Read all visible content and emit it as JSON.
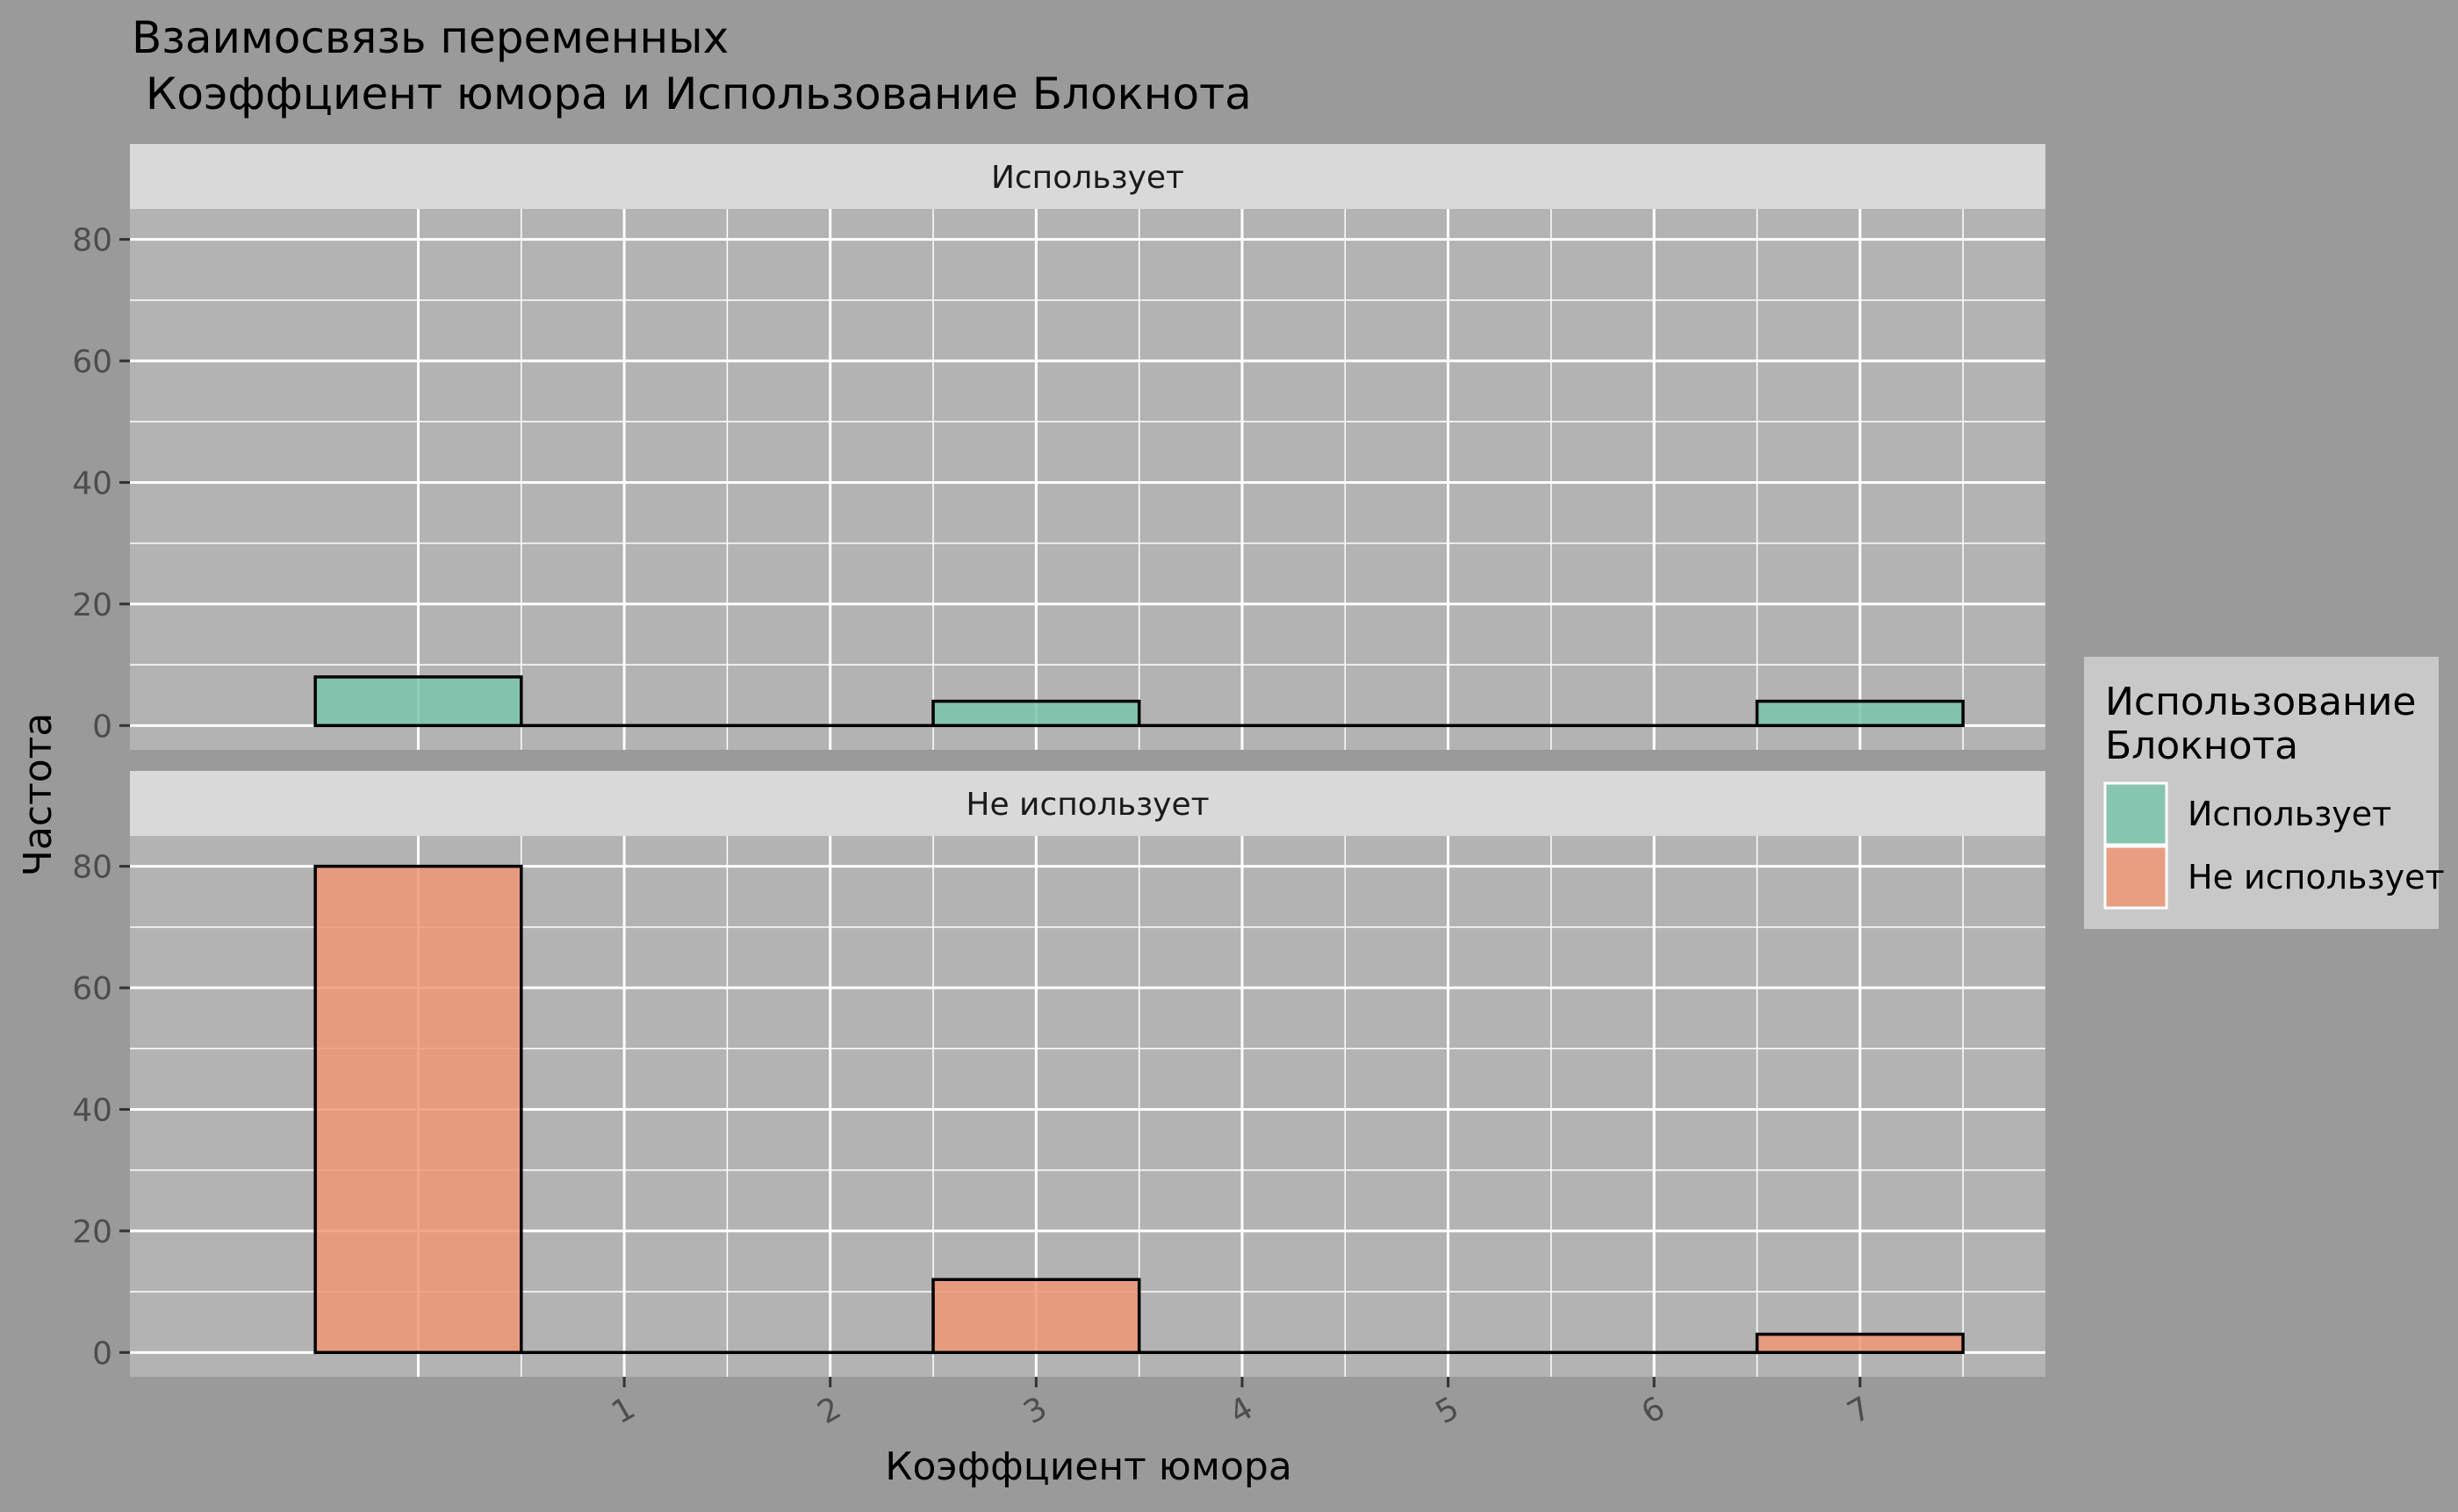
{
  "chart_data": {
    "type": "bar",
    "title_line1": "Взаимосвязь переменных",
    "title_line2": " Коэффциент юмора и Использование Блокнота",
    "xlabel": "Коэффциент юмора",
    "ylabel": "Частота",
    "x_ticks": [
      "1",
      "2",
      "3",
      "4",
      "5",
      "6",
      "7"
    ],
    "ylim": [
      -4,
      85
    ],
    "y_ticks": [
      0,
      20,
      40,
      60,
      80
    ],
    "bins": [
      {
        "x0": -0.5,
        "x1": 0.5
      },
      {
        "x0": 0.5,
        "x1": 1.5
      },
      {
        "x0": 1.5,
        "x1": 2.5
      },
      {
        "x0": 2.5,
        "x1": 3.5
      },
      {
        "x0": 3.5,
        "x1": 4.5
      },
      {
        "x0": 4.5,
        "x1": 5.5
      },
      {
        "x0": 5.5,
        "x1": 6.5
      },
      {
        "x0": 6.5,
        "x1": 7.5
      }
    ],
    "series": [
      {
        "name": "Использует",
        "color": "#7ac6ad",
        "values": [
          8,
          0,
          0,
          4,
          0,
          0,
          0,
          4
        ]
      },
      {
        "name": "Не использует",
        "color": "#f09674",
        "values": [
          80,
          0,
          0,
          12,
          0,
          0,
          0,
          3
        ]
      }
    ],
    "legend": {
      "title_line1": "Использование",
      "title_line2": "Блокнота",
      "position": "right"
    },
    "grid": true,
    "colors": {
      "background": "#9a9a9a",
      "panel": "#b3b3b3",
      "strip": "#d9d9d9",
      "grid": "#ffffff",
      "axis_text": "#4d4d4d",
      "use": "#7ac6ad",
      "not_use": "#f09674"
    }
  }
}
